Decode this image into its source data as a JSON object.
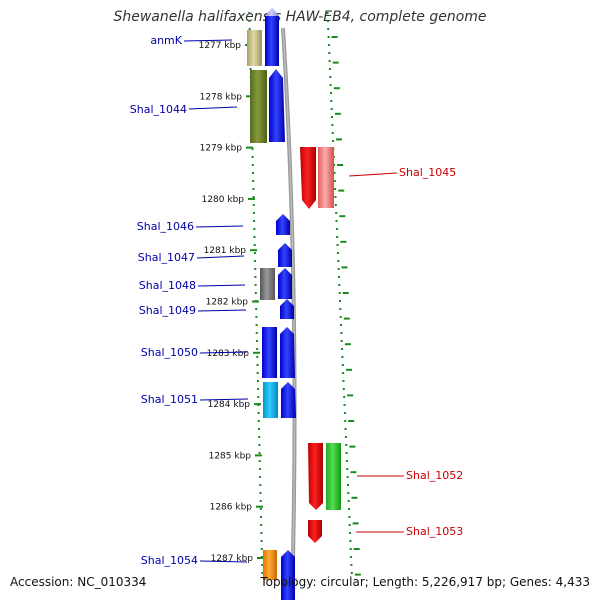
{
  "title": "Shewanella halifaxensis HAW-EB4, complete genome",
  "footer": {
    "accession": "Accession: NC_010334",
    "summary": "Topology: circular; Length: 5,226,917 bp; Genes: 4,433"
  },
  "ticks": [
    {
      "label": "1277 kbp",
      "kbp": 1277
    },
    {
      "label": "1278 kbp",
      "kbp": 1278
    },
    {
      "label": "1279 kbp",
      "kbp": 1279
    },
    {
      "label": "1280 kbp",
      "kbp": 1280
    },
    {
      "label": "1281 kbp",
      "kbp": 1281
    },
    {
      "label": "1282 kbp",
      "kbp": 1282
    },
    {
      "label": "1283 kbp",
      "kbp": 1283
    },
    {
      "label": "1284 kbp",
      "kbp": 1284
    },
    {
      "label": "1285 kbp",
      "kbp": 1285
    },
    {
      "label": "1286 kbp",
      "kbp": 1286
    },
    {
      "label": "1287 kbp",
      "kbp": 1287
    }
  ],
  "gene_labels": [
    {
      "name": "anmK",
      "strand": "forward",
      "color": "#0000aa"
    },
    {
      "name": "Shal_1044",
      "strand": "forward",
      "color": "#0000aa"
    },
    {
      "name": "Shal_1045",
      "strand": "reverse",
      "color": "#cc0000"
    },
    {
      "name": "Shal_1046",
      "strand": "forward",
      "color": "#0000aa"
    },
    {
      "name": "Shal_1047",
      "strand": "forward",
      "color": "#0000aa"
    },
    {
      "name": "Shal_1048",
      "strand": "forward",
      "color": "#0000aa"
    },
    {
      "name": "Shal_1049",
      "strand": "forward",
      "color": "#0000aa"
    },
    {
      "name": "Shal_1050",
      "strand": "forward",
      "color": "#0000aa"
    },
    {
      "name": "Shal_1051",
      "strand": "forward",
      "color": "#0000aa"
    },
    {
      "name": "Shal_1052",
      "strand": "reverse",
      "color": "#cc0000"
    },
    {
      "name": "Shal_1053",
      "strand": "reverse",
      "color": "#cc0000"
    },
    {
      "name": "Shal_1054",
      "strand": "forward",
      "color": "#0000aa"
    }
  ],
  "colors": {
    "forward_label": "#0000aa",
    "reverse_label": "#cc0000",
    "backbone": "#888888",
    "dots": "#1a8a1a",
    "cds_forward": "#0000ee",
    "cds_reverse": "#ee0000"
  }
}
